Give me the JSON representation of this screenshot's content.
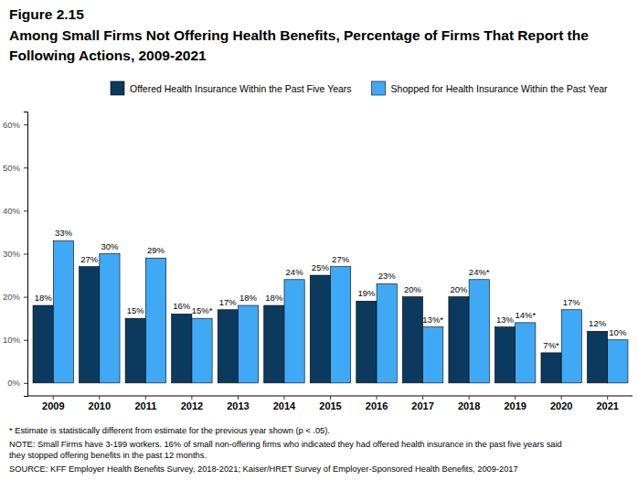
{
  "chart_data": {
    "type": "bar",
    "title": "Figure 2.15",
    "subtitle": [
      "Among Small Firms Not Offering Health Benefits, Percentage of Firms That Report the",
      "Following Actions, 2009-2021"
    ],
    "categories": [
      "2009",
      "2010",
      "2011",
      "2012",
      "2013",
      "2014",
      "2015",
      "2016",
      "2017",
      "2018",
      "2019",
      "2020",
      "2021"
    ],
    "series": [
      {
        "name": "Offered Health Insurance Within the Past Five Years",
        "color": "#0b3a5e",
        "values": [
          18,
          27,
          15,
          16,
          17,
          18,
          25,
          19,
          20,
          20,
          13,
          7,
          12
        ],
        "value_labels": [
          "18%",
          "27%",
          "15%",
          "16%",
          "17%",
          "18%",
          "25%",
          "19%",
          "20%",
          "20%",
          "13%",
          "7%*",
          "12%"
        ]
      },
      {
        "name": "Shopped for Health Insurance Within the Past Year",
        "color": "#3fa9f5",
        "values": [
          33,
          30,
          29,
          15,
          18,
          24,
          27,
          23,
          13,
          24,
          14,
          17,
          10
        ],
        "value_labels": [
          "33%",
          "30%",
          "29%",
          "15%*",
          "18%",
          "24%",
          "27%",
          "23%",
          "13%*",
          "24%*",
          "14%*",
          "17%",
          "10%"
        ]
      }
    ],
    "ylim": [
      -3,
      63
    ],
    "yticks": [
      {
        "value": 0,
        "label": "0%"
      },
      {
        "value": 10,
        "label": "10%"
      },
      {
        "value": 20,
        "label": "20%"
      },
      {
        "value": 30,
        "label": "30%"
      },
      {
        "value": 40,
        "label": "40%"
      },
      {
        "value": 50,
        "label": "50%"
      },
      {
        "value": 60,
        "label": "60%"
      }
    ],
    "grid": false,
    "legend": "top",
    "data_labels": true,
    "notes": [
      "* Estimate is statistically different from estimate for the previous year shown (p < .05).",
      "NOTE: Small Firms have 3-199 workers. 16% of small non-offering firms who indicated they had offered health insurance in the past five years said",
      "they stopped offering benefits in the past 12 months.",
      "SOURCE: KFF Employer Health Benefits Survey, 2018-2021; Kaiser/HRET Survey of Employer-Sponsored Health Benefits, 2009-2017"
    ]
  }
}
